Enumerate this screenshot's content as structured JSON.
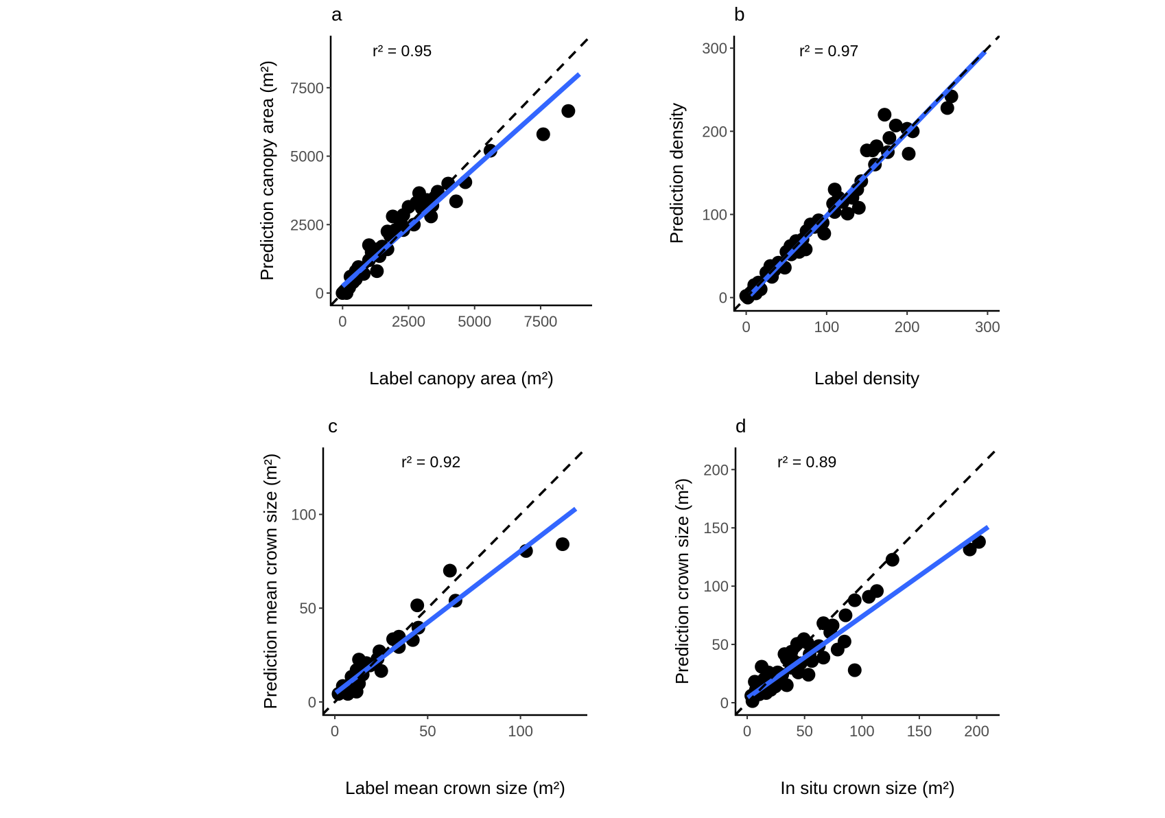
{
  "colors": {
    "points": "#000000",
    "fit_line": "#3366FF",
    "identity_line": "#000000",
    "tick_text": "#4d4d4d"
  },
  "chart_data": [
    {
      "panel": "a",
      "type": "scatter",
      "xlabel": "Label canopy area (m²)",
      "ylabel": "Prediction canopy area (m²)",
      "annotation": "r² = 0.95",
      "xlim": [
        -450,
        9450
      ],
      "ylim": [
        -450,
        9400
      ],
      "xticks": [
        0,
        2500,
        5000,
        7500
      ],
      "yticks": [
        0,
        2500,
        5000,
        7500
      ],
      "identity_line": true,
      "grid": false,
      "fit_line": [
        [
          0,
          250
        ],
        [
          8970,
          8000
        ]
      ],
      "points": [
        [
          8550,
          6650
        ],
        [
          7600,
          5800
        ],
        [
          5600,
          5200
        ],
        [
          4650,
          4050
        ],
        [
          4300,
          3350
        ],
        [
          4000,
          4000
        ],
        [
          3600,
          3700
        ],
        [
          3500,
          3500
        ],
        [
          3400,
          3200
        ],
        [
          3350,
          2800
        ],
        [
          3200,
          3400
        ],
        [
          3000,
          3100
        ],
        [
          2900,
          3650
        ],
        [
          2800,
          3300
        ],
        [
          2700,
          2500
        ],
        [
          2500,
          3150
        ],
        [
          2300,
          2850
        ],
        [
          2300,
          2300
        ],
        [
          2200,
          2600
        ],
        [
          2000,
          2300
        ],
        [
          1900,
          2800
        ],
        [
          1800,
          2100
        ],
        [
          1700,
          2250
        ],
        [
          1700,
          1600
        ],
        [
          1500,
          1700
        ],
        [
          1400,
          1350
        ],
        [
          1300,
          1600
        ],
        [
          1300,
          800
        ],
        [
          1100,
          1500
        ],
        [
          1000,
          1750
        ],
        [
          1000,
          1200
        ],
        [
          800,
          700
        ],
        [
          600,
          950
        ],
        [
          500,
          800
        ],
        [
          500,
          500
        ],
        [
          400,
          400
        ],
        [
          300,
          600
        ],
        [
          250,
          200
        ],
        [
          100,
          100
        ],
        [
          0,
          0
        ],
        [
          50,
          50
        ],
        [
          150,
          0
        ],
        [
          200,
          150
        ]
      ]
    },
    {
      "panel": "b",
      "type": "scatter",
      "xlabel": "Label density",
      "ylabel": "Prediction density",
      "annotation": "r² = 0.97",
      "xlim": [
        -15,
        315
      ],
      "ylim": [
        -16,
        315
      ],
      "xticks": [
        0,
        100,
        200,
        300
      ],
      "yticks": [
        0,
        100,
        200,
        300
      ],
      "identity_line": true,
      "grid": false,
      "fit_line": [
        [
          5,
          3
        ],
        [
          297,
          296
        ]
      ],
      "points": [
        [
          255,
          242
        ],
        [
          250,
          228
        ],
        [
          207,
          200
        ],
        [
          200,
          203
        ],
        [
          202,
          173
        ],
        [
          186,
          207
        ],
        [
          178,
          192
        ],
        [
          176,
          175
        ],
        [
          172,
          220
        ],
        [
          162,
          182
        ],
        [
          157,
          177
        ],
        [
          160,
          160
        ],
        [
          150,
          177
        ],
        [
          143,
          140
        ],
        [
          140,
          108
        ],
        [
          138,
          130
        ],
        [
          132,
          120
        ],
        [
          126,
          101
        ],
        [
          120,
          115
        ],
        [
          115,
          120
        ],
        [
          110,
          130
        ],
        [
          110,
          103
        ],
        [
          108,
          113
        ],
        [
          97,
          77
        ],
        [
          95,
          90
        ],
        [
          90,
          93
        ],
        [
          85,
          85
        ],
        [
          80,
          88
        ],
        [
          75,
          80
        ],
        [
          74,
          58
        ],
        [
          70,
          70
        ],
        [
          66,
          55
        ],
        [
          62,
          68
        ],
        [
          60,
          60
        ],
        [
          56,
          52
        ],
        [
          55,
          62
        ],
        [
          50,
          55
        ],
        [
          48,
          36
        ],
        [
          40,
          42
        ],
        [
          35,
          33
        ],
        [
          32,
          25
        ],
        [
          30,
          38
        ],
        [
          25,
          30
        ],
        [
          18,
          10
        ],
        [
          15,
          18
        ],
        [
          12,
          5
        ],
        [
          10,
          15
        ],
        [
          8,
          8
        ],
        [
          5,
          5
        ],
        [
          2,
          0
        ],
        [
          0,
          2
        ]
      ]
    },
    {
      "panel": "c",
      "type": "scatter",
      "xlabel": "Label mean crown size (m²)",
      "ylabel": "Prediction mean crown size (m²)",
      "annotation": "r² = 0.92",
      "xlim": [
        -6.3,
        136
      ],
      "ylim": [
        -7,
        135.7
      ],
      "xticks": [
        0,
        50,
        100
      ],
      "yticks": [
        0,
        50,
        100
      ],
      "identity_line": true,
      "grid": false,
      "fit_line": [
        [
          0.6,
          4.9
        ],
        [
          129.8,
          103
        ]
      ],
      "points": [
        [
          122.7,
          84.1
        ],
        [
          103,
          80.5
        ],
        [
          62,
          70
        ],
        [
          65,
          54
        ],
        [
          44.4,
          51.5
        ],
        [
          45,
          39.6
        ],
        [
          42,
          33
        ],
        [
          34.5,
          34.8
        ],
        [
          34.5,
          29.3
        ],
        [
          31.4,
          33.5
        ],
        [
          24,
          27
        ],
        [
          25,
          16.5
        ],
        [
          23,
          23
        ],
        [
          17,
          20.7
        ],
        [
          13,
          22.6
        ],
        [
          11.7,
          17
        ],
        [
          13,
          9.8
        ],
        [
          11.7,
          5.5
        ],
        [
          9,
          13.4
        ],
        [
          7,
          4.3
        ],
        [
          4.3,
          8.5
        ],
        [
          2,
          4.3
        ],
        [
          15,
          14.6
        ],
        [
          19,
          19.5
        ],
        [
          8.6,
          8
        ],
        [
          11,
          11
        ]
      ]
    },
    {
      "panel": "d",
      "type": "scatter",
      "xlabel": "In situ crown size (m²)",
      "ylabel": "Prediction crown size (m²)",
      "annotation": "r² = 0.89",
      "xlim": [
        -10.2,
        220
      ],
      "ylim": [
        -10.6,
        219
      ],
      "xticks": [
        0,
        50,
        100,
        150,
        200
      ],
      "yticks": [
        0,
        50,
        100,
        150,
        200
      ],
      "identity_line": true,
      "grid": false,
      "fit_line": [
        [
          0.6,
          4.3
        ],
        [
          210,
          150.8
        ]
      ],
      "points": [
        [
          202,
          138
        ],
        [
          194,
          131.5
        ],
        [
          126.6,
          122.7
        ],
        [
          113,
          95.8
        ],
        [
          106,
          90.9
        ],
        [
          93.7,
          87.9
        ],
        [
          93.7,
          27.9
        ],
        [
          85.7,
          75
        ],
        [
          84.8,
          52.5
        ],
        [
          78.8,
          45.6
        ],
        [
          74.4,
          66.3
        ],
        [
          72.4,
          60.4
        ],
        [
          66.4,
          68.2
        ],
        [
          66.4,
          38.7
        ],
        [
          62.4,
          48.6
        ],
        [
          56.4,
          35.8
        ],
        [
          52.4,
          51.5
        ],
        [
          49.4,
          54.5
        ],
        [
          43.5,
          50.5
        ],
        [
          53.4,
          24
        ],
        [
          44.5,
          26
        ],
        [
          46.5,
          33.8
        ],
        [
          40.5,
          35.8
        ],
        [
          34.5,
          37.8
        ],
        [
          32.5,
          41.7
        ],
        [
          38.5,
          43.7
        ],
        [
          34.5,
          15
        ],
        [
          30.5,
          24
        ],
        [
          26.5,
          26
        ],
        [
          24.5,
          14
        ],
        [
          20.5,
          11
        ],
        [
          18.5,
          26
        ],
        [
          12.6,
          30.9
        ],
        [
          14.6,
          20
        ],
        [
          6.6,
          18
        ],
        [
          10.6,
          7.3
        ],
        [
          4.6,
          1.4
        ],
        [
          7.6,
          11
        ],
        [
          16.5,
          8.3
        ],
        [
          28.5,
          20
        ],
        [
          38.5,
          30
        ],
        [
          54.4,
          41.7
        ],
        [
          22.5,
          17
        ],
        [
          3.6,
          6
        ]
      ]
    }
  ]
}
